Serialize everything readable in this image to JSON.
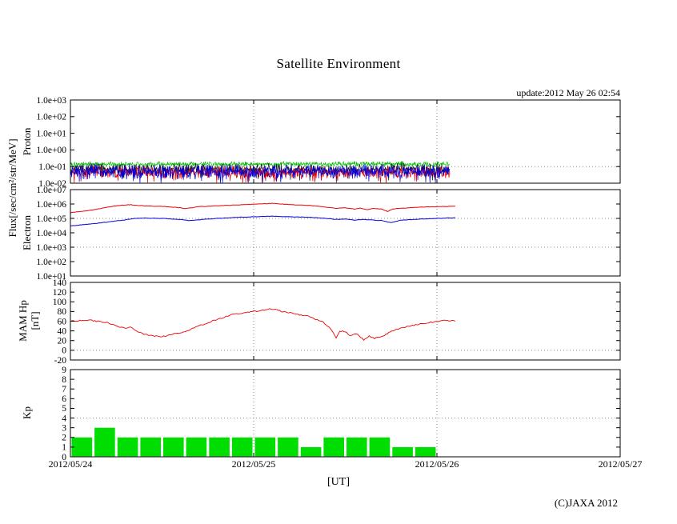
{
  "title": "Satellite Environment",
  "update_text": "update:2012 May 26 02:54",
  "credit": "(C)JAXA 2012",
  "flux_axis_label": "Flux[/sec/cm²/str/MeV]",
  "xaxis": {
    "label": "[UT]",
    "tick_labels": [
      "2012/05/24",
      "2012/05/25",
      "2012/05/26",
      "2012/05/27"
    ],
    "range_days": [
      0,
      3
    ],
    "grid_days": [
      1,
      2
    ]
  },
  "chart_data": [
    {
      "id": "proton",
      "type": "line",
      "ylabel": "Proton",
      "yscale": "log",
      "ylim": [
        0.01,
        1000
      ],
      "ytick_values": [
        1000,
        100,
        10,
        1,
        0.1,
        0.01
      ],
      "ytick_labels": [
        "1.0e+03",
        "1.0e+02",
        "1.0e+01",
        "1.0e+00",
        "1.0e-01",
        "1.0e-02"
      ],
      "hgrid": [
        0.1
      ],
      "data_end_day": 2.07,
      "series": [
        {
          "name": "proton-series-green",
          "color": "#00bb00",
          "base": 0.14,
          "noise_decades": 0.18,
          "spikes": false,
          "seed": 101,
          "width": 0.7
        },
        {
          "name": "proton-series-black",
          "color": "#15152e",
          "base": 0.07,
          "noise_decades": 0.4,
          "spikes": true,
          "seed": 202,
          "width": 0.7
        },
        {
          "name": "proton-series-red",
          "color": "#ee0000",
          "base": 0.045,
          "noise_decades": 0.42,
          "spikes": true,
          "seed": 303,
          "width": 0.7
        },
        {
          "name": "proton-series-blue",
          "color": "#0000dd",
          "base": 0.05,
          "noise_decades": 0.5,
          "spikes": true,
          "seed": 404,
          "width": 0.7
        }
      ]
    },
    {
      "id": "electron",
      "type": "line",
      "ylabel": "Electron",
      "yscale": "log",
      "ylim": [
        10,
        10000000
      ],
      "ytick_values": [
        10000000,
        1000000,
        100000,
        10000,
        1000,
        100,
        10
      ],
      "ytick_labels": [
        "1.0e+07",
        "1.0e+06",
        "1.0e+05",
        "1.0e+04",
        "1.0e+03",
        "1.0e+02",
        "1.0e+01"
      ],
      "hgrid": [
        100000,
        1000
      ],
      "data_end_day": 2.1,
      "series": [
        {
          "name": "electron-series-red",
          "color": "#ee0000",
          "jitter_decades": 0.015,
          "seed": 505,
          "width": 1,
          "points": [
            [
              0,
              250000.0
            ],
            [
              0.05,
              300000.0
            ],
            [
              0.1,
              350000.0
            ],
            [
              0.15,
              450000.0
            ],
            [
              0.2,
              600000.0
            ],
            [
              0.25,
              750000.0
            ],
            [
              0.3,
              850000.0
            ],
            [
              0.33,
              900000.0
            ],
            [
              0.36,
              800000.0
            ],
            [
              0.4,
              750000.0
            ],
            [
              0.45,
              700000.0
            ],
            [
              0.5,
              680000.0
            ],
            [
              0.55,
              620000.0
            ],
            [
              0.6,
              550000.0
            ],
            [
              0.63,
              480000.0
            ],
            [
              0.66,
              550000.0
            ],
            [
              0.7,
              650000.0
            ],
            [
              0.75,
              700000.0
            ],
            [
              0.8,
              750000.0
            ],
            [
              0.85,
              800000.0
            ],
            [
              0.9,
              850000.0
            ],
            [
              0.95,
              900000.0
            ],
            [
              1.0,
              950000.0
            ],
            [
              1.05,
              1050000.0
            ],
            [
              1.1,
              1100000.0
            ],
            [
              1.15,
              1000000.0
            ],
            [
              1.2,
              900000.0
            ],
            [
              1.25,
              850000.0
            ],
            [
              1.3,
              800000.0
            ],
            [
              1.35,
              700000.0
            ],
            [
              1.4,
              600000.0
            ],
            [
              1.45,
              500000.0
            ],
            [
              1.5,
              550000.0
            ],
            [
              1.55,
              450000.0
            ],
            [
              1.58,
              520000.0
            ],
            [
              1.62,
              400000.0
            ],
            [
              1.65,
              500000.0
            ],
            [
              1.7,
              450000.0
            ],
            [
              1.73,
              300000.0
            ],
            [
              1.76,
              450000.0
            ],
            [
              1.8,
              500000.0
            ],
            [
              1.85,
              550000.0
            ],
            [
              1.9,
              600000.0
            ],
            [
              1.95,
              620000.0
            ],
            [
              2.0,
              650000.0
            ],
            [
              2.05,
              680000.0
            ],
            [
              2.1,
              700000.0
            ]
          ]
        },
        {
          "name": "electron-series-blue",
          "color": "#0000dd",
          "jitter_decades": 0.015,
          "seed": 606,
          "width": 1,
          "points": [
            [
              0,
              30000.0
            ],
            [
              0.1,
              40000.0
            ],
            [
              0.2,
              55000.0
            ],
            [
              0.3,
              80000.0
            ],
            [
              0.35,
              100000.0
            ],
            [
              0.4,
              105000.0
            ],
            [
              0.5,
              100000.0
            ],
            [
              0.6,
              85000.0
            ],
            [
              0.65,
              70000.0
            ],
            [
              0.7,
              80000.0
            ],
            [
              0.8,
              100000.0
            ],
            [
              0.9,
              115000.0
            ],
            [
              1.0,
              130000.0
            ],
            [
              1.1,
              140000.0
            ],
            [
              1.2,
              130000.0
            ],
            [
              1.3,
              120000.0
            ],
            [
              1.4,
              100000.0
            ],
            [
              1.45,
              85000.0
            ],
            [
              1.5,
              90000.0
            ],
            [
              1.55,
              75000.0
            ],
            [
              1.6,
              85000.0
            ],
            [
              1.7,
              70000.0
            ],
            [
              1.75,
              50000.0
            ],
            [
              1.8,
              75000.0
            ],
            [
              1.9,
              90000.0
            ],
            [
              2.0,
              100000.0
            ],
            [
              2.1,
              110000.0
            ]
          ]
        }
      ]
    },
    {
      "id": "hp",
      "type": "line",
      "ylabel": "MAM Hp",
      "ylabel_unit": "[nT]",
      "yscale": "linear",
      "ylim": [
        -20,
        140
      ],
      "ytick_values": [
        140,
        120,
        100,
        80,
        60,
        40,
        20,
        0,
        -20
      ],
      "ytick_labels": [
        "140",
        "120",
        "100",
        "80",
        "60",
        "40",
        "20",
        "0",
        "-20"
      ],
      "hgrid": [
        0
      ],
      "data_end_day": 2.1,
      "series": [
        {
          "name": "hp-series-red",
          "color": "#ee0000",
          "jitter": 1.3,
          "seed": 707,
          "width": 0.9,
          "points": [
            [
              0,
              60
            ],
            [
              0.05,
              61
            ],
            [
              0.1,
              62
            ],
            [
              0.15,
              60
            ],
            [
              0.2,
              57
            ],
            [
              0.25,
              50
            ],
            [
              0.3,
              45
            ],
            [
              0.33,
              48
            ],
            [
              0.36,
              40
            ],
            [
              0.4,
              33
            ],
            [
              0.45,
              30
            ],
            [
              0.5,
              28
            ],
            [
              0.55,
              33
            ],
            [
              0.6,
              36
            ],
            [
              0.65,
              42
            ],
            [
              0.7,
              50
            ],
            [
              0.75,
              57
            ],
            [
              0.8,
              63
            ],
            [
              0.85,
              70
            ],
            [
              0.9,
              75
            ],
            [
              0.95,
              78
            ],
            [
              1.0,
              80
            ],
            [
              1.05,
              83
            ],
            [
              1.08,
              85
            ],
            [
              1.12,
              84
            ],
            [
              1.15,
              80
            ],
            [
              1.2,
              78
            ],
            [
              1.25,
              73
            ],
            [
              1.3,
              70
            ],
            [
              1.33,
              65
            ],
            [
              1.38,
              58
            ],
            [
              1.42,
              45
            ],
            [
              1.45,
              25
            ],
            [
              1.47,
              40
            ],
            [
              1.5,
              38
            ],
            [
              1.53,
              30
            ],
            [
              1.56,
              35
            ],
            [
              1.6,
              22
            ],
            [
              1.63,
              30
            ],
            [
              1.66,
              25
            ],
            [
              1.7,
              28
            ],
            [
              1.73,
              35
            ],
            [
              1.76,
              40
            ],
            [
              1.8,
              45
            ],
            [
              1.85,
              50
            ],
            [
              1.9,
              54
            ],
            [
              1.95,
              57
            ],
            [
              2.0,
              59
            ],
            [
              2.05,
              62
            ],
            [
              2.1,
              60
            ]
          ]
        }
      ]
    },
    {
      "id": "kp",
      "type": "bar",
      "ylabel": "Kp",
      "yscale": "linear",
      "ylim": [
        0,
        9
      ],
      "ytick_values": [
        9,
        8,
        7,
        6,
        5,
        4,
        3,
        2,
        1,
        0
      ],
      "ytick_labels": [
        "9",
        "8",
        "7",
        "6",
        "5",
        "4",
        "3",
        "2",
        "1",
        "0"
      ],
      "hgrid": [
        4
      ],
      "bar_width_days": 0.125,
      "bar_color": "#00dd00",
      "values": [
        2,
        3,
        2,
        2,
        2,
        2,
        2,
        2,
        2,
        2,
        1,
        2,
        2,
        2,
        1,
        1
      ]
    }
  ]
}
